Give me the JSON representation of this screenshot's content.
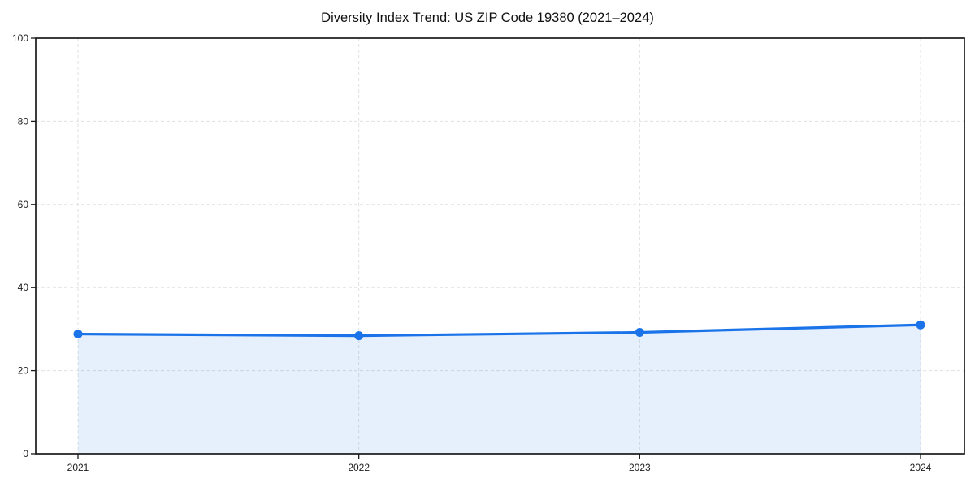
{
  "page": {
    "background": "#ffffff"
  },
  "chart_data": {
    "type": "line",
    "title": "Diversity Index Trend: US ZIP Code 19380 (2021–2024)",
    "x": [
      "2021",
      "2022",
      "2023",
      "2024"
    ],
    "series": [
      {
        "name": "Diversity Index",
        "values": [
          28.8,
          28.4,
          29.2,
          31.0
        ],
        "color": "#1a73e8",
        "marker": "circle",
        "marker_radius": 5.5,
        "area_fill": true,
        "area_opacity": 0.11
      }
    ],
    "xlabel": "",
    "ylabel": "",
    "ylim": [
      0,
      100
    ],
    "yticks": [
      0,
      20,
      40,
      60,
      80,
      100
    ],
    "grid": {
      "show": true,
      "style": "dashed",
      "color": "#e0e0e0",
      "axes": "both"
    },
    "legend": {
      "show": false
    },
    "axis_color": "#1a1a1a",
    "tick_label_color": "#1c1c1c",
    "title_color": "#111111"
  }
}
